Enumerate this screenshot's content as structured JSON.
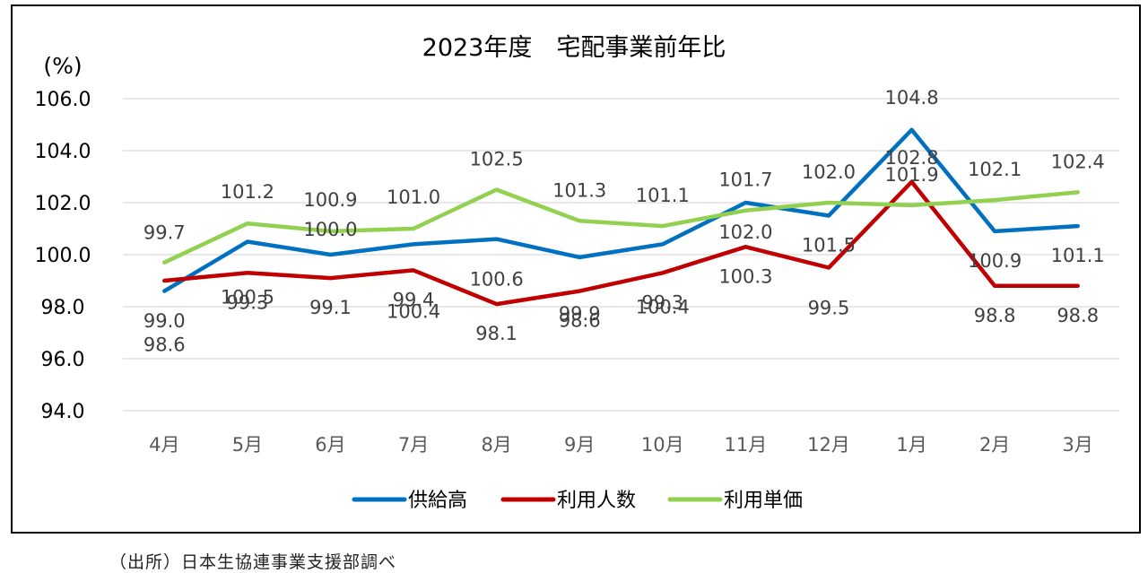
{
  "source_note": "（出所）日本生協連事業支援部調べ",
  "chart_data": {
    "type": "line",
    "title": "2023年度　宅配事業前年比",
    "ylabel": "(%)",
    "xlabel": "",
    "categories": [
      "4月",
      "5月",
      "6月",
      "7月",
      "8月",
      "9月",
      "10月",
      "11月",
      "12月",
      "1月",
      "2月",
      "3月"
    ],
    "ylim": [
      94.0,
      106.0
    ],
    "yticks": [
      "94.0",
      "96.0",
      "98.0",
      "100.0",
      "102.0",
      "104.0",
      "106.0"
    ],
    "grid": true,
    "legend_position": "bottom",
    "series": [
      {
        "name": "供給高",
        "color": "#0070c0",
        "values": [
          98.6,
          100.5,
          100.0,
          100.4,
          100.6,
          99.9,
          100.4,
          102.0,
          101.5,
          104.8,
          100.9,
          101.1
        ]
      },
      {
        "name": "利用人数",
        "color": "#c00000",
        "values": [
          99.0,
          99.3,
          99.1,
          99.4,
          98.1,
          98.6,
          99.3,
          100.3,
          99.5,
          102.8,
          98.8,
          98.8
        ]
      },
      {
        "name": "利用単価",
        "color": "#92d050",
        "values": [
          99.7,
          101.2,
          100.9,
          101.0,
          102.5,
          101.3,
          101.1,
          101.7,
          102.0,
          101.9,
          102.1,
          102.4
        ]
      }
    ]
  }
}
